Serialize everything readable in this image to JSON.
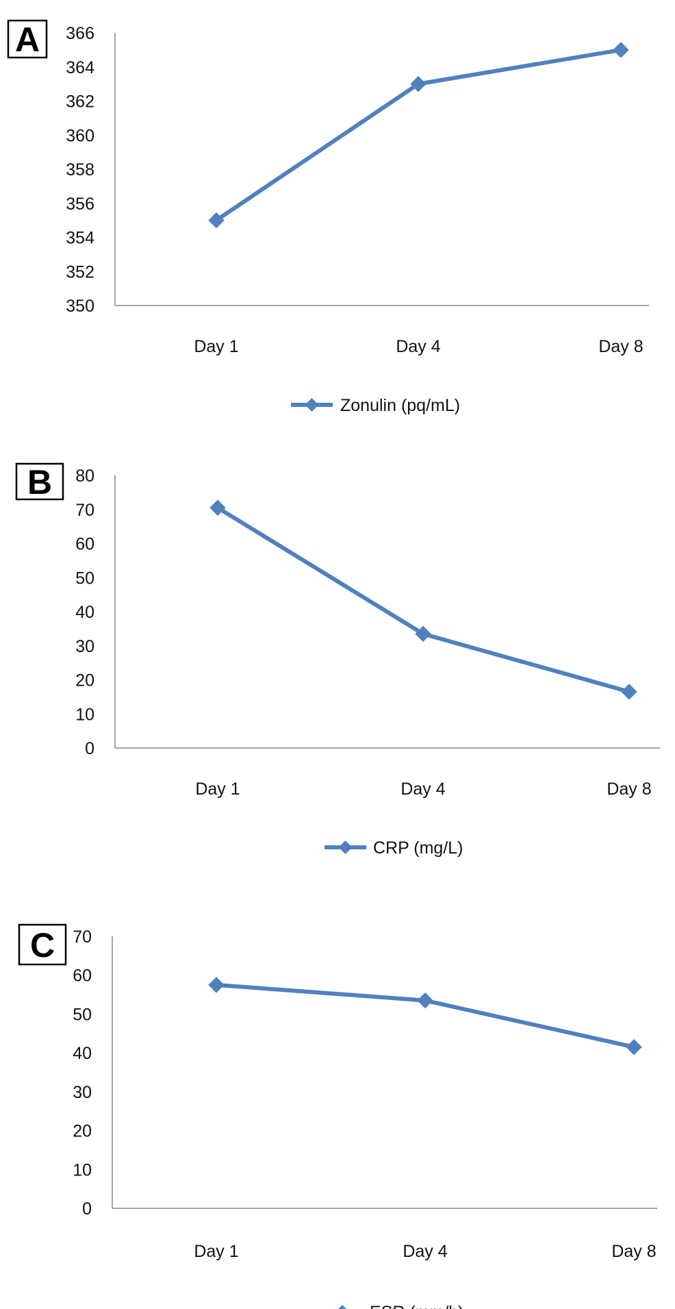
{
  "chart_data": [
    {
      "type": "line",
      "panel_label": "A",
      "categories": [
        "Day 1",
        "Day 4",
        "Day 8"
      ],
      "series": [
        {
          "name": "Zonulin (pq/mL)",
          "values": [
            355,
            363,
            365
          ]
        }
      ],
      "ylim": [
        350,
        366
      ],
      "yticks": [
        "350",
        "352",
        "354",
        "356",
        "358",
        "360",
        "362",
        "364",
        "366"
      ],
      "grid": false,
      "legend_position": "bottom",
      "colors": {
        "line": "#4f81bd"
      }
    },
    {
      "type": "line",
      "panel_label": "B",
      "categories": [
        "Day 1",
        "Day 4",
        "Day 8"
      ],
      "series": [
        {
          "name": "CRP (mg/L)",
          "values": [
            70.5,
            33.5,
            16.5
          ]
        }
      ],
      "ylim": [
        0,
        80
      ],
      "yticks": [
        "0",
        "10",
        "20",
        "30",
        "40",
        "50",
        "60",
        "70",
        "80"
      ],
      "grid": false,
      "legend_position": "bottom",
      "colors": {
        "line": "#4f81bd"
      }
    },
    {
      "type": "line",
      "panel_label": "C",
      "categories": [
        "Day 1",
        "Day 4",
        "Day 8"
      ],
      "series": [
        {
          "name": "ESR (mm/h)",
          "values": [
            57.5,
            53.5,
            41.5
          ]
        }
      ],
      "ylim": [
        0,
        70
      ],
      "yticks": [
        "0",
        "10",
        "20",
        "30",
        "40",
        "50",
        "60",
        "70"
      ],
      "grid": false,
      "legend_position": "bottom",
      "colors": {
        "line": "#4f81bd"
      }
    }
  ]
}
